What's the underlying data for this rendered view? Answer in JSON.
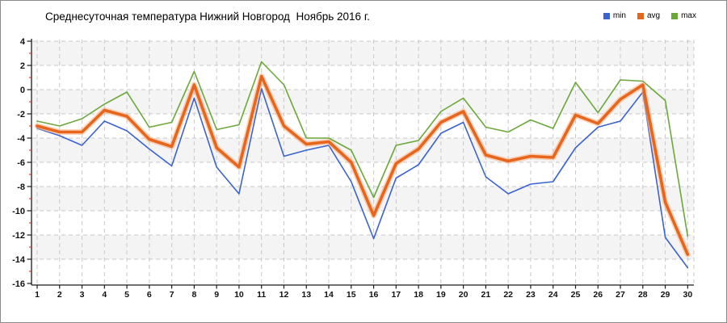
{
  "chart_data": {
    "type": "line",
    "title": "Среднесуточная температура Нижний Новгород  Ноябрь 2016 г.",
    "x_label": "",
    "y_label": "",
    "x_unit": "day of November 2016",
    "x": [
      1,
      2,
      3,
      4,
      5,
      6,
      7,
      8,
      9,
      10,
      11,
      12,
      13,
      14,
      15,
      16,
      17,
      18,
      19,
      20,
      21,
      22,
      23,
      24,
      25,
      26,
      27,
      28,
      29,
      30
    ],
    "ylim": [
      -16,
      4
    ],
    "ytick_step": 2,
    "y_minor_tick_step": 1,
    "grid": "dashed",
    "background_bands": "alternating horizontal gray bands every 2 units",
    "legend_position": "top-right",
    "series": [
      {
        "name": "min",
        "color": "#3b63cf",
        "width": 1.6,
        "values": [
          -3.2,
          -3.8,
          -4.6,
          -2.6,
          -3.4,
          -4.9,
          -6.3,
          -0.7,
          -6.4,
          -8.6,
          0.1,
          -5.5,
          -5.0,
          -4.6,
          -7.6,
          -12.3,
          -7.3,
          -6.2,
          -3.6,
          -2.7,
          -7.2,
          -8.6,
          -7.8,
          -7.6,
          -4.8,
          -3.1,
          -2.6,
          -0.2,
          -12.2,
          -14.7
        ]
      },
      {
        "name": "avg",
        "color": "#e8651c",
        "width": 3.6,
        "values": [
          -3.0,
          -3.5,
          -3.5,
          -1.7,
          -2.2,
          -4.1,
          -4.7,
          0.4,
          -4.8,
          -6.4,
          1.1,
          -3.0,
          -4.5,
          -4.3,
          -6.0,
          -10.4,
          -6.1,
          -4.9,
          -2.7,
          -1.8,
          -5.4,
          -5.9,
          -5.5,
          -5.6,
          -2.1,
          -2.8,
          -0.8,
          0.4,
          -9.3,
          -13.6
        ]
      },
      {
        "name": "max",
        "color": "#6ba83a",
        "width": 1.6,
        "values": [
          -2.6,
          -3.0,
          -2.4,
          -1.2,
          -0.2,
          -3.1,
          -2.7,
          1.5,
          -3.3,
          -2.9,
          2.3,
          0.4,
          -4.0,
          -4.0,
          -5.0,
          -8.9,
          -4.6,
          -4.2,
          -1.8,
          -0.7,
          -3.1,
          -3.5,
          -2.5,
          -3.2,
          0.6,
          -1.9,
          0.8,
          0.7,
          -0.9,
          -12.1
        ]
      }
    ]
  },
  "styles": {
    "band_fill": "#f4f4f4",
    "grid_color": "#c9c9c9",
    "axis_color": "#1a1a1a",
    "tick_label_color": "#111111",
    "minor_tick_color": "#cc2a1a",
    "border_color": "#8a8a8a",
    "avg_halo_color": "#f7b183"
  }
}
